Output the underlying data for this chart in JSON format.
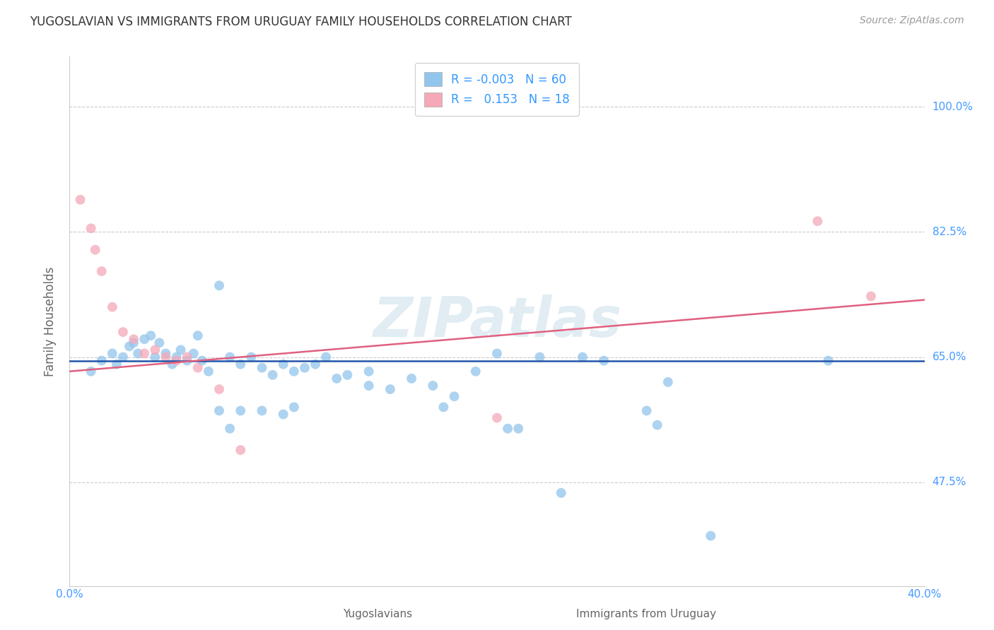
{
  "title": "YUGOSLAVIAN VS IMMIGRANTS FROM URUGUAY FAMILY HOUSEHOLDS CORRELATION CHART",
  "source_text": "Source: ZipAtlas.com",
  "ylabel": "Family Households",
  "xlabel_blue": "Yugoslavians",
  "xlabel_pink": "Immigrants from Uruguay",
  "watermark": "ZIPatlas",
  "legend_blue_r": "-0.003",
  "legend_blue_n": "60",
  "legend_pink_r": "0.153",
  "legend_pink_n": "18",
  "xlim": [
    0.0,
    40.0
  ],
  "ylim": [
    33.0,
    107.0
  ],
  "yticks": [
    47.5,
    65.0,
    82.5,
    100.0
  ],
  "ytick_labels": [
    "47.5%",
    "65.0%",
    "82.5%",
    "100.0%"
  ],
  "xticks": [
    0.0,
    10.0,
    20.0,
    30.0,
    40.0
  ],
  "xtick_labels": [
    "0.0%",
    "",
    "",
    "",
    "40.0%"
  ],
  "blue_color": "#92C5EC",
  "pink_color": "#F4A8B8",
  "blue_line_color": "#2255AA",
  "pink_line_color": "#E06080",
  "grid_color": "#CCCCCC",
  "title_color": "#333333",
  "axis_label_color": "#666666",
  "tick_color": "#4499FF",
  "source_color": "#999999",
  "background_color": "#FFFFFF",
  "blue_scatter_x": [
    1.0,
    1.5,
    2.0,
    2.2,
    2.5,
    2.8,
    3.0,
    3.2,
    3.5,
    3.8,
    4.0,
    4.2,
    4.5,
    4.8,
    5.0,
    5.2,
    5.5,
    5.8,
    6.0,
    6.2,
    6.5,
    7.0,
    7.5,
    8.0,
    8.5,
    9.0,
    9.5,
    10.0,
    10.5,
    11.0,
    11.5,
    12.0,
    12.5,
    13.0,
    14.0,
    15.0,
    16.0,
    17.0,
    18.0,
    19.0,
    20.0,
    21.0,
    22.0,
    23.0,
    24.0,
    25.0,
    27.0,
    28.0,
    30.0,
    7.0,
    8.0,
    9.0,
    10.0,
    14.0,
    17.5,
    20.5,
    27.5,
    35.5,
    7.5,
    10.5
  ],
  "blue_scatter_y": [
    63.0,
    64.5,
    65.5,
    64.0,
    65.0,
    66.5,
    67.0,
    65.5,
    67.5,
    68.0,
    65.0,
    67.0,
    65.5,
    64.0,
    65.0,
    66.0,
    64.5,
    65.5,
    68.0,
    64.5,
    63.0,
    75.0,
    65.0,
    64.0,
    65.0,
    63.5,
    62.5,
    64.0,
    63.0,
    63.5,
    64.0,
    65.0,
    62.0,
    62.5,
    61.0,
    60.5,
    62.0,
    61.0,
    59.5,
    63.0,
    65.5,
    55.0,
    65.0,
    46.0,
    65.0,
    64.5,
    57.5,
    61.5,
    40.0,
    57.5,
    57.5,
    57.5,
    57.0,
    63.0,
    58.0,
    55.0,
    55.5,
    64.5,
    55.0,
    58.0
  ],
  "pink_scatter_x": [
    0.5,
    1.0,
    1.2,
    1.5,
    2.0,
    2.5,
    3.0,
    3.5,
    4.0,
    4.5,
    5.0,
    5.5,
    6.0,
    7.0,
    8.0,
    20.0,
    35.0,
    37.5
  ],
  "pink_scatter_y": [
    87.0,
    83.0,
    80.0,
    77.0,
    72.0,
    68.5,
    67.5,
    65.5,
    66.0,
    65.0,
    64.5,
    65.0,
    63.5,
    60.5,
    52.0,
    56.5,
    84.0,
    73.5
  ],
  "blue_trend_y0": 64.5,
  "blue_trend_y1": 64.5,
  "pink_trend_y0": 63.0,
  "pink_trend_y1": 73.0
}
